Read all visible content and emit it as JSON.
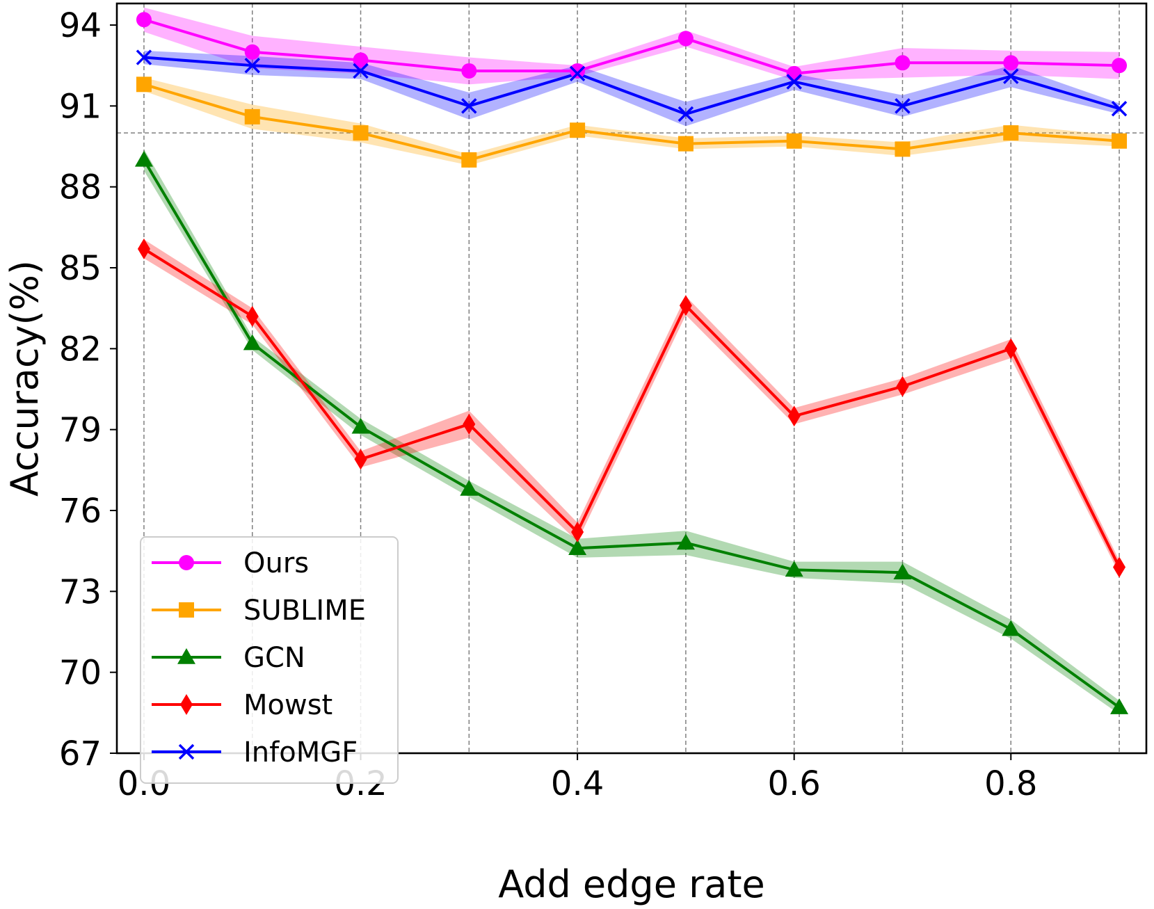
{
  "chart_data": {
    "type": "line",
    "title": "",
    "xlabel": "Add edge rate",
    "ylabel": "Accuracy(%)",
    "x": [
      0.0,
      0.1,
      0.2,
      0.3,
      0.4,
      0.5,
      0.6,
      0.7,
      0.8,
      0.9
    ],
    "xlim": [
      -0.025,
      0.925
    ],
    "ylim": [
      67,
      94.8
    ],
    "xticks": [
      0.0,
      0.2,
      0.4,
      0.6,
      0.8
    ],
    "xtick_labels": [
      "0.0",
      "0.2",
      "0.4",
      "0.6",
      "0.8"
    ],
    "yticks": [
      67,
      70,
      73,
      76,
      79,
      82,
      85,
      88,
      91,
      94
    ],
    "ytick_labels": [
      "67",
      "70",
      "73",
      "76",
      "79",
      "82",
      "85",
      "88",
      "91",
      "94"
    ],
    "grid": {
      "vertical": true,
      "horizontal_reference": 90.0,
      "style": "dashed"
    },
    "legend_position": "lower-left",
    "series": [
      {
        "name": "Ours",
        "color": "#ff00ff",
        "marker": "circle",
        "values": [
          94.2,
          93.0,
          92.7,
          92.3,
          92.3,
          93.5,
          92.2,
          92.6,
          92.6,
          92.5
        ],
        "band": [
          0.45,
          0.6,
          0.5,
          0.5,
          0.2,
          0.3,
          0.25,
          0.55,
          0.45,
          0.5
        ]
      },
      {
        "name": "SUBLIME",
        "color": "#ffa500",
        "marker": "square",
        "values": [
          91.8,
          90.6,
          90.0,
          89.0,
          90.1,
          89.6,
          89.7,
          89.4,
          90.0,
          89.7
        ],
        "band": [
          0.25,
          0.45,
          0.35,
          0.2,
          0.2,
          0.2,
          0.2,
          0.25,
          0.3,
          0.2
        ]
      },
      {
        "name": "GCN",
        "color": "#008000",
        "marker": "triangle",
        "values": [
          89.0,
          82.2,
          79.1,
          76.8,
          74.6,
          74.8,
          73.8,
          73.7,
          71.6,
          68.7
        ],
        "band": [
          0.4,
          0.25,
          0.3,
          0.3,
          0.35,
          0.45,
          0.3,
          0.4,
          0.35,
          0.25
        ]
      },
      {
        "name": "Mowst",
        "color": "#ff0000",
        "marker": "diamond",
        "values": [
          85.7,
          83.2,
          77.9,
          79.2,
          75.2,
          83.6,
          79.5,
          80.6,
          82.0,
          73.9
        ],
        "band": [
          0.35,
          0.3,
          0.3,
          0.5,
          0.35,
          0.35,
          0.3,
          0.3,
          0.35,
          0.25
        ]
      },
      {
        "name": "InfoMGF",
        "color": "#0000ff",
        "marker": "x",
        "values": [
          92.8,
          92.5,
          92.3,
          91.0,
          92.2,
          90.7,
          91.9,
          91.0,
          92.1,
          90.9
        ],
        "band": [
          0.25,
          0.35,
          0.3,
          0.5,
          0.3,
          0.45,
          0.3,
          0.4,
          0.4,
          0.2
        ]
      }
    ]
  }
}
